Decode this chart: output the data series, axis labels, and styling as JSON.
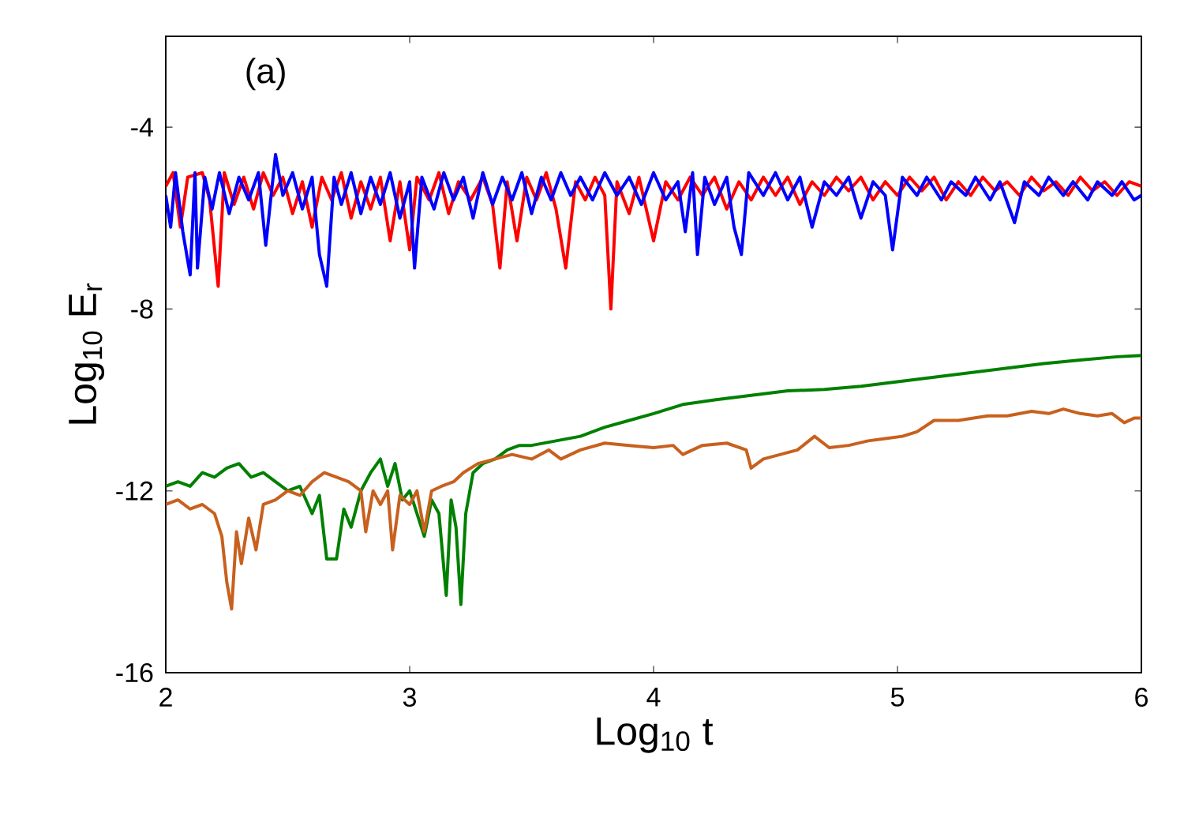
{
  "chart_data": {
    "type": "line",
    "xlabel": "Log$_{10}$ t",
    "ylabel": "Log$_{10}$ E$_{r}$",
    "annotations": [
      "(a)"
    ],
    "xlim": [
      2,
      6
    ],
    "ylim": [
      -16,
      -2
    ],
    "xticks": [
      2,
      3,
      4,
      5,
      6
    ],
    "yticks": [
      -16,
      -12,
      -8,
      -4
    ],
    "series": [
      {
        "color": "#ff0000",
        "x": [
          2.0,
          2.03,
          2.06,
          2.09,
          2.12,
          2.15,
          2.18,
          2.215,
          2.24,
          2.28,
          2.32,
          2.36,
          2.4,
          2.44,
          2.48,
          2.52,
          2.56,
          2.6,
          2.64,
          2.68,
          2.72,
          2.76,
          2.8,
          2.84,
          2.88,
          2.92,
          2.96,
          3.0,
          3.03,
          3.08,
          3.12,
          3.16,
          3.2,
          3.25,
          3.3,
          3.34,
          3.37,
          3.4,
          3.44,
          3.48,
          3.52,
          3.56,
          3.6,
          3.64,
          3.68,
          3.72,
          3.76,
          3.8,
          3.825,
          3.85,
          3.9,
          3.94,
          4.0,
          4.05,
          4.1,
          4.15,
          4.2,
          4.25,
          4.3,
          4.35,
          4.4,
          4.45,
          4.5,
          4.55,
          4.6,
          4.65,
          4.7,
          4.75,
          4.8,
          4.85,
          4.9,
          4.95,
          5.0,
          5.05,
          5.1,
          5.15,
          5.2,
          5.25,
          5.3,
          5.35,
          5.4,
          5.45,
          5.5,
          5.55,
          5.6,
          5.65,
          5.7,
          5.75,
          5.8,
          5.85,
          5.9,
          5.95,
          6.0
        ],
        "values": [
          -5.3,
          -5.0,
          -6.2,
          -5.1,
          null,
          -5.0,
          -5.6,
          -7.5,
          -5.0,
          -5.7,
          -5.1,
          -5.8,
          -5.0,
          -5.5,
          -5.1,
          -5.9,
          -5.2,
          -6.2,
          -5.1,
          -5.6,
          -5.0,
          -6.0,
          -5.2,
          -5.8,
          -5.1,
          -6.5,
          -5.2,
          -6.7,
          -5.1,
          -5.6,
          -5.0,
          -5.9,
          -5.2,
          -5.6,
          -5.1,
          -5.7,
          -7.1,
          -5.2,
          -6.5,
          -5.1,
          -5.6,
          -5.0,
          -5.8,
          -7.1,
          -5.2,
          -5.6,
          -5.1,
          -5.5,
          -8.0,
          -5.2,
          -5.9,
          -5.1,
          -6.5,
          -5.2,
          -5.6,
          -5.1,
          -5.5,
          -5.1,
          -5.8,
          -5.2,
          -5.6,
          -5.1,
          -5.5,
          -5.1,
          -5.7,
          -5.2,
          -5.5,
          -5.1,
          -5.4,
          -5.1,
          -5.6,
          -5.2,
          -5.5,
          -5.1,
          -5.4,
          -5.1,
          -5.6,
          -5.2,
          -5.5,
          -5.1,
          -5.4,
          -5.2,
          -5.5,
          -5.1,
          -5.4,
          -5.2,
          -5.5,
          -5.1,
          -5.4,
          -5.2,
          -5.5,
          -5.2,
          -5.3
        ]
      },
      {
        "color": "#0000ff",
        "x": [
          2.0,
          2.02,
          2.04,
          2.07,
          2.1,
          2.12,
          2.13,
          2.16,
          2.19,
          2.22,
          2.26,
          2.3,
          2.34,
          2.38,
          2.41,
          2.45,
          2.48,
          2.52,
          2.56,
          2.6,
          2.63,
          2.66,
          2.69,
          2.72,
          2.76,
          2.8,
          2.84,
          2.88,
          2.92,
          2.96,
          3.0,
          3.02,
          3.05,
          3.1,
          3.14,
          3.18,
          3.22,
          3.26,
          3.3,
          3.34,
          3.38,
          3.42,
          3.46,
          3.5,
          3.54,
          3.58,
          3.62,
          3.66,
          3.7,
          3.75,
          3.8,
          3.85,
          3.9,
          3.95,
          4.0,
          4.05,
          4.1,
          4.13,
          4.16,
          4.18,
          4.21,
          4.25,
          4.3,
          4.33,
          4.36,
          4.39,
          4.45,
          4.5,
          4.55,
          4.6,
          4.65,
          4.7,
          4.75,
          4.8,
          4.85,
          4.9,
          4.95,
          4.98,
          5.02,
          5.08,
          5.12,
          5.18,
          5.22,
          5.28,
          5.32,
          5.38,
          5.42,
          5.48,
          5.52,
          5.58,
          5.62,
          5.68,
          5.72,
          5.78,
          5.82,
          5.88,
          5.92,
          5.97,
          6.0
        ],
        "values": [
          -5.5,
          -6.2,
          -5.0,
          -6.3,
          -7.25,
          -5.0,
          -7.1,
          -5.1,
          -5.8,
          -5.0,
          -5.9,
          -5.1,
          -5.6,
          -5.0,
          -6.6,
          -4.6,
          -5.5,
          -5.0,
          -5.8,
          -5.1,
          -6.8,
          -7.5,
          -5.1,
          -5.7,
          -5.0,
          -5.9,
          -5.1,
          -5.7,
          -5.0,
          -6.0,
          -5.2,
          -7.1,
          -5.1,
          -5.8,
          -5.0,
          -5.6,
          -5.1,
          -6.0,
          -5.0,
          -5.7,
          -5.1,
          -5.6,
          -5.0,
          -5.9,
          -5.1,
          -5.6,
          -5.0,
          -5.5,
          -5.1,
          -5.6,
          -5.0,
          -5.5,
          -5.1,
          -5.7,
          -5.0,
          -5.6,
          -5.2,
          -6.3,
          -5.0,
          -6.8,
          -5.1,
          -5.7,
          -5.1,
          -6.2,
          -6.8,
          -5.0,
          -5.5,
          -5.0,
          -5.6,
          -5.1,
          -6.2,
          -5.2,
          -5.5,
          -5.1,
          -6.0,
          -5.2,
          -5.5,
          -6.7,
          -5.1,
          -5.5,
          -5.1,
          -5.6,
          -5.2,
          -5.5,
          -5.1,
          -5.6,
          -5.2,
          -6.1,
          -5.2,
          -5.5,
          -5.1,
          -5.5,
          -5.2,
          -5.6,
          -5.2,
          -5.5,
          -5.2,
          -5.6,
          -5.5
        ]
      },
      {
        "color": "#008000",
        "x": [
          2.0,
          2.05,
          2.1,
          2.15,
          2.2,
          2.25,
          2.3,
          2.35,
          2.4,
          2.45,
          2.5,
          2.55,
          2.6,
          2.63,
          2.66,
          2.7,
          2.73,
          2.76,
          2.8,
          2.84,
          2.88,
          2.91,
          2.94,
          2.97,
          3.0,
          3.03,
          3.06,
          3.09,
          3.12,
          3.15,
          3.17,
          3.19,
          3.21,
          3.23,
          3.26,
          3.3,
          3.35,
          3.4,
          3.45,
          3.5,
          3.6,
          3.7,
          3.8,
          3.9,
          4.0,
          4.12,
          4.25,
          4.4,
          4.55,
          4.7,
          4.85,
          5.0,
          5.15,
          5.3,
          5.45,
          5.6,
          5.75,
          5.9,
          6.0
        ],
        "values": [
          -11.9,
          -11.8,
          -11.9,
          -11.6,
          -11.7,
          -11.5,
          -11.4,
          -11.7,
          -11.6,
          -11.8,
          -12.0,
          -11.9,
          -12.5,
          -12.1,
          -13.5,
          -13.5,
          -12.4,
          -12.8,
          -12.0,
          -11.6,
          -11.3,
          -11.9,
          -11.4,
          -12.2,
          -12.0,
          -12.5,
          -13.0,
          -12.2,
          -12.5,
          -14.3,
          -12.2,
          -12.8,
          -14.5,
          -12.5,
          -11.6,
          -11.4,
          -11.3,
          -11.1,
          -11.0,
          -11.0,
          -10.9,
          -10.8,
          -10.6,
          -10.45,
          -10.3,
          -10.1,
          -10.0,
          -9.9,
          -9.8,
          -9.77,
          -9.7,
          -9.6,
          -9.5,
          -9.4,
          -9.3,
          -9.2,
          -9.12,
          -9.05,
          -9.02
        ]
      },
      {
        "color": "#c8601e",
        "x": [
          2.0,
          2.05,
          2.1,
          2.15,
          2.2,
          2.23,
          2.25,
          2.27,
          2.29,
          2.31,
          2.34,
          2.37,
          2.4,
          2.45,
          2.5,
          2.55,
          2.6,
          2.65,
          2.7,
          2.75,
          2.8,
          2.82,
          2.85,
          2.88,
          2.91,
          2.93,
          2.96,
          3.0,
          3.03,
          3.06,
          3.09,
          3.13,
          3.18,
          3.22,
          3.28,
          3.35,
          3.42,
          3.5,
          3.57,
          3.62,
          3.7,
          3.8,
          3.9,
          4.0,
          4.08,
          4.12,
          4.2,
          4.3,
          4.38,
          4.4,
          4.45,
          4.52,
          4.59,
          4.66,
          4.72,
          4.8,
          4.88,
          4.95,
          5.02,
          5.08,
          5.15,
          5.25,
          5.37,
          5.45,
          5.55,
          5.62,
          5.68,
          5.75,
          5.82,
          5.88,
          5.93,
          5.97,
          6.0
        ],
        "values": [
          -12.3,
          -12.2,
          -12.4,
          -12.3,
          -12.5,
          -13.0,
          -14.0,
          -14.6,
          -12.9,
          -13.6,
          -12.6,
          -13.3,
          -12.3,
          -12.2,
          -12.0,
          -12.1,
          -11.8,
          -11.6,
          -11.7,
          -11.8,
          -12.0,
          -12.9,
          -12.0,
          -12.3,
          -12.0,
          -13.3,
          -12.1,
          -12.3,
          -12.0,
          -12.9,
          -12.0,
          -11.9,
          -11.8,
          -11.6,
          -11.4,
          -11.3,
          -11.2,
          -11.3,
          -11.1,
          -11.3,
          -11.1,
          -10.95,
          -11.0,
          -11.05,
          -11.0,
          -11.2,
          -11.0,
          -10.95,
          -11.1,
          -11.5,
          -11.3,
          -11.2,
          -11.1,
          -10.8,
          -11.05,
          -11.0,
          -10.9,
          -10.85,
          -10.8,
          -10.7,
          -10.45,
          -10.45,
          -10.35,
          -10.35,
          -10.25,
          -10.3,
          -10.2,
          -10.3,
          -10.35,
          -10.3,
          -10.5,
          -10.4,
          -10.4
        ]
      }
    ]
  }
}
